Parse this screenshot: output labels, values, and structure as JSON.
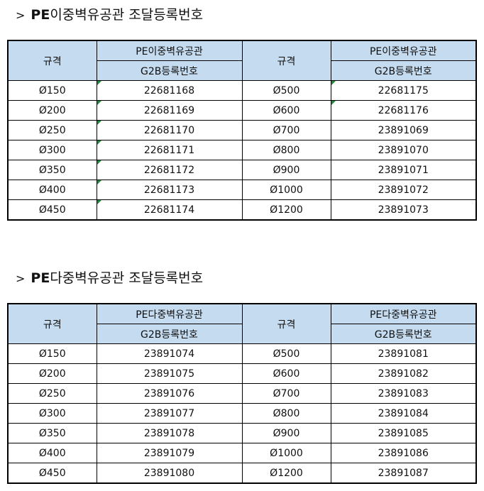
{
  "sections": [
    {
      "title_caret": ">",
      "title_strong": "PE",
      "title_rest": "이중벽유공관 조달등록번호",
      "header": {
        "spec_label": "규격",
        "product_label": "PE이중벽유공관",
        "reg_label": "G2B등록번호"
      },
      "rows": [
        {
          "left_size": "Ø150",
          "left_no": "22681168",
          "right_size": "Ø500",
          "right_no": "22681175"
        },
        {
          "left_size": "Ø200",
          "left_no": "22681169",
          "right_size": "Ø600",
          "right_no": "22681176"
        },
        {
          "left_size": "Ø250",
          "left_no": "22681170",
          "right_size": "Ø700",
          "right_no": "23891069"
        },
        {
          "left_size": "Ø300",
          "left_no": "22681171",
          "right_size": "Ø800",
          "right_no": "23891070"
        },
        {
          "left_size": "Ø350",
          "left_no": "22681172",
          "right_size": "Ø900",
          "right_no": "23891071"
        },
        {
          "left_size": "Ø400",
          "left_no": "22681173",
          "right_size": "Ø1000",
          "right_no": "23891072"
        },
        {
          "left_size": "Ø450",
          "left_no": "22681174",
          "right_size": "Ø1200",
          "right_no": "23891073"
        }
      ]
    },
    {
      "title_caret": ">",
      "title_strong": "PE",
      "title_rest": "다중벽유공관 조달등록번호",
      "header": {
        "spec_label": "규격",
        "product_label": "PE다중벽유공관",
        "reg_label": "G2B등록번호"
      },
      "rows": [
        {
          "left_size": "Ø150",
          "left_no": "23891074",
          "right_size": "Ø500",
          "right_no": "23891081"
        },
        {
          "left_size": "Ø200",
          "left_no": "23891075",
          "right_size": "Ø600",
          "right_no": "23891082"
        },
        {
          "left_size": "Ø250",
          "left_no": "23891076",
          "right_size": "Ø700",
          "right_no": "23891083"
        },
        {
          "left_size": "Ø300",
          "left_no": "23891077",
          "right_size": "Ø800",
          "right_no": "23891084"
        },
        {
          "left_size": "Ø350",
          "left_no": "23891078",
          "right_size": "Ø900",
          "right_no": "23891085"
        },
        {
          "left_size": "Ø400",
          "left_no": "23891079",
          "right_size": "Ø1000",
          "right_no": "23891086"
        },
        {
          "left_size": "Ø450",
          "left_no": "23891080",
          "right_size": "Ø1200",
          "right_no": "23891087"
        }
      ]
    }
  ],
  "colors": {
    "header_fill": "#c5dbef",
    "border": "#000000",
    "cell_marker": "#1f8a3a"
  }
}
